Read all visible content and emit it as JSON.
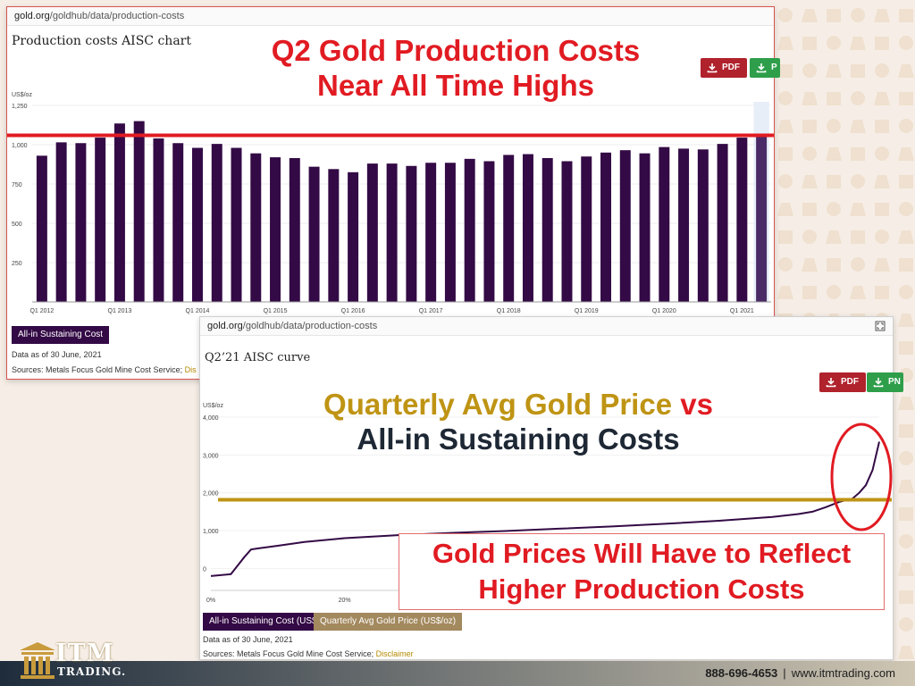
{
  "panel1": {
    "url_domain": "gold.org",
    "url_path": "/goldhub/data/production-costs",
    "title": "Production costs AISC chart",
    "pdf_label": "PDF",
    "png_label": "P",
    "legend_label": "All-in Sustaining Cost",
    "data_note": "Data as of 30 June, 2021",
    "sources_text": "Sources: Metals Focus Gold Mine Cost Service;",
    "sources_link": "Dis"
  },
  "panel2": {
    "url_domain": "gold.org",
    "url_path": "/goldhub/data/production-costs",
    "title": "Q2’21 AISC curve",
    "pdf_label": "PDF",
    "png_label": "PN",
    "legend_aisc": "All-in Sustaining Cost (US$/oz)",
    "legend_gold": "Quarterly Avg Gold Price (US$/oz)",
    "data_note": "Data as of 30 June, 2021",
    "sources_text": "Sources: Metals Focus Gold Mine Cost Service;",
    "sources_link": "Disclaimer"
  },
  "overlays": {
    "headline_line1": "Q2 Gold Production Costs",
    "headline_line2": "Near All Time Highs",
    "compare_gold": "Quarterly Avg Gold Price",
    "compare_vs": " vs",
    "compare_aisc": "All-in Sustaining Costs",
    "reflect_line1": "Gold Prices Will Have to Reflect",
    "reflect_line2": "Higher Production Costs"
  },
  "footer": {
    "logo_word": "ITM",
    "logo_sub": "TRADING.",
    "phone": "888-696-4653",
    "separator": "|",
    "website": "www.itmtrading.com"
  },
  "colors": {
    "bar": "#330a45",
    "highlight_line": "#e11b22",
    "gold_line": "#bf9414",
    "aisc_curve": "#330a45"
  },
  "chart_data": [
    {
      "type": "bar",
      "ylabel": "US$/oz",
      "ylim": [
        0,
        1250
      ],
      "yticks": [
        250,
        500,
        750,
        1000,
        1250
      ],
      "xtick_labels": [
        "Q1 2012",
        "Q1 2013",
        "Q1 2014",
        "Q1 2015",
        "Q1 2016",
        "Q1 2017",
        "Q1 2018",
        "Q1 2019",
        "Q1 2020",
        "Q1 2021"
      ],
      "categories": [
        "Q1 2012",
        "Q2 2012",
        "Q3 2012",
        "Q4 2012",
        "Q1 2013",
        "Q2 2013",
        "Q3 2013",
        "Q4 2013",
        "Q1 2014",
        "Q2 2014",
        "Q3 2014",
        "Q4 2014",
        "Q1 2015",
        "Q2 2015",
        "Q3 2015",
        "Q4 2015",
        "Q1 2016",
        "Q2 2016",
        "Q3 2016",
        "Q4 2016",
        "Q1 2017",
        "Q2 2017",
        "Q3 2017",
        "Q4 2017",
        "Q1 2018",
        "Q2 2018",
        "Q3 2018",
        "Q4 2018",
        "Q1 2019",
        "Q2 2019",
        "Q3 2019",
        "Q4 2019",
        "Q1 2020",
        "Q2 2020",
        "Q3 2020",
        "Q4 2020",
        "Q1 2021",
        "Q2 2021"
      ],
      "series": [
        {
          "name": "All-in Sustaining Cost",
          "values": [
            930,
            1015,
            1010,
            1045,
            1135,
            1150,
            1040,
            1010,
            980,
            1005,
            980,
            945,
            920,
            915,
            860,
            845,
            825,
            880,
            880,
            865,
            885,
            885,
            910,
            895,
            935,
            940,
            915,
            895,
            925,
            950,
            965,
            945,
            985,
            975,
            970,
            1005,
            1045,
            1060
          ]
        }
      ],
      "highlighted_category": "Q2 2021",
      "reference_line": 1060,
      "grid": true
    },
    {
      "type": "line",
      "ylabel": "US$/oz",
      "ylim": [
        -250,
        4000
      ],
      "yticks": [
        0,
        1000,
        2000,
        3000,
        4000
      ],
      "xtick_labels": [
        "0%",
        "20%"
      ],
      "xlim": [
        0,
        100
      ],
      "series": [
        {
          "name": "All-in Sustaining Cost (US$/oz)",
          "x": [
            0,
            3,
            5,
            6,
            7,
            10,
            14,
            20,
            28,
            36,
            44,
            52,
            60,
            68,
            76,
            84,
            88,
            90,
            92,
            94,
            96,
            97,
            98,
            99,
            100
          ],
          "y": [
            -200,
            -150,
            300,
            500,
            530,
            600,
            700,
            800,
            880,
            940,
            990,
            1050,
            1110,
            1180,
            1260,
            1360,
            1440,
            1500,
            1620,
            1760,
            1850,
            2000,
            2200,
            2600,
            3350
          ]
        },
        {
          "name": "Quarterly Avg Gold Price (US$/oz)",
          "x": [
            0,
            100
          ],
          "y": [
            1815,
            1815
          ]
        }
      ],
      "grid": false
    }
  ]
}
